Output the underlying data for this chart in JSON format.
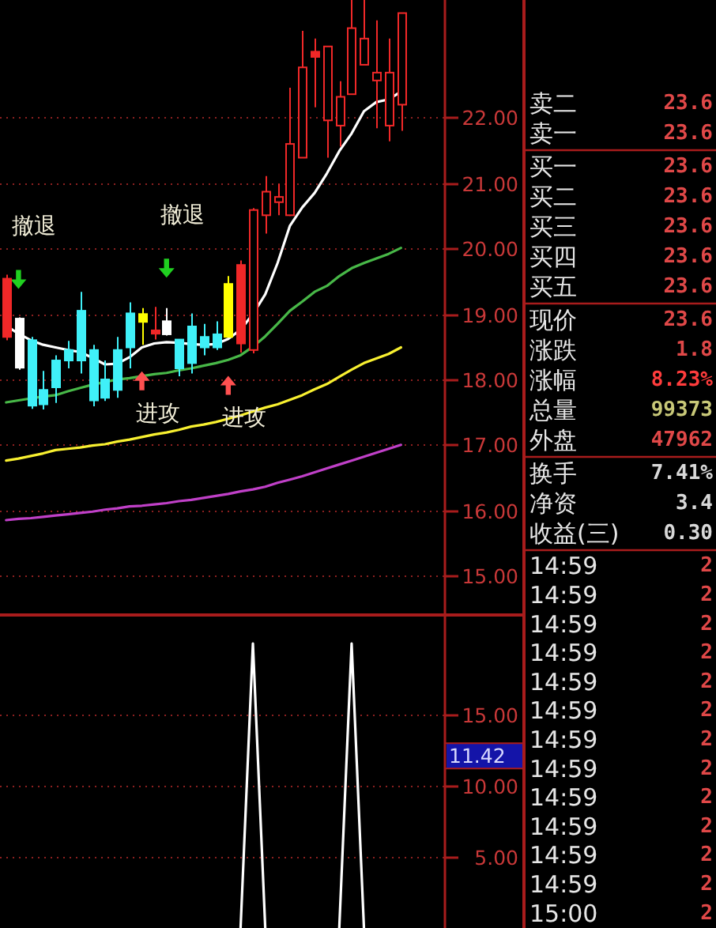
{
  "chart_data": [
    {
      "type": "candlestick",
      "categories": [
        null,
        null,
        null,
        null,
        null,
        null,
        null,
        null,
        null,
        null,
        null,
        null,
        null,
        null,
        null,
        null,
        null,
        null,
        null,
        null,
        null,
        null,
        null,
        null,
        null,
        null,
        null,
        null,
        null,
        null,
        null,
        null,
        null
      ],
      "ohlc": [
        [
          19.54,
          19.6,
          18.6,
          18.65
        ],
        [
          18.93,
          18.95,
          18.15,
          18.18
        ],
        [
          18.6,
          18.65,
          17.55,
          17.6
        ],
        [
          17.84,
          18.13,
          17.54,
          17.62
        ],
        [
          18.29,
          18.37,
          17.64,
          17.88
        ],
        [
          18.45,
          18.59,
          18.17,
          18.29
        ],
        [
          19.05,
          19.34,
          18.09,
          18.29
        ],
        [
          18.45,
          18.53,
          17.59,
          17.68
        ],
        [
          18.0,
          18.29,
          17.67,
          17.72
        ],
        [
          18.45,
          18.65,
          17.72,
          17.84
        ],
        [
          19.01,
          19.18,
          18.17,
          18.49
        ],
        [
          19.0,
          19.09,
          18.53,
          18.88
        ],
        [
          18.75,
          19.11,
          18.61,
          18.7
        ],
        [
          18.89,
          19.09,
          18.67,
          18.69
        ],
        [
          18.61,
          18.61,
          18.05,
          18.17
        ],
        [
          18.81,
          19.01,
          18.09,
          18.25
        ],
        [
          18.65,
          18.85,
          18.37,
          18.49
        ],
        [
          18.69,
          18.89,
          18.45,
          18.49
        ],
        [
          19.46,
          19.58,
          18.65,
          18.65
        ],
        [
          19.75,
          19.82,
          18.41,
          18.55
        ],
        [
          18.45,
          20.62,
          18.4,
          20.59
        ],
        [
          20.51,
          21.11,
          20.23,
          20.87
        ],
        [
          20.71,
          20.99,
          20.51,
          20.79
        ],
        [
          20.51,
          22.46,
          20.5,
          21.6
        ],
        [
          21.39,
          23.33,
          21.39,
          22.77
        ],
        [
          23.01,
          23.21,
          22.16,
          22.93
        ],
        [
          21.96,
          23.1,
          21.39,
          23.09
        ],
        [
          21.88,
          22.56,
          21.56,
          22.32
        ],
        [
          22.36,
          23.8,
          22.36,
          23.37
        ],
        [
          22.81,
          23.8,
          22.81,
          23.21
        ],
        [
          22.57,
          23.49,
          21.84,
          22.69
        ],
        [
          21.88,
          23.21,
          21.64,
          22.69
        ],
        [
          22.2,
          23.6,
          21.8,
          23.6
        ]
      ],
      "colors": [
        "#f02828",
        "#ffffff",
        "#40f0f8",
        "#40f0f8",
        "#40f0f8",
        "#40f0f8",
        "#40f0f8",
        "#40f0f8",
        "#40f0f8",
        "#40f0f8",
        "#40f0f8",
        "#ffff00",
        "#f02828",
        "#ffffff",
        "#40f0f8",
        "#40f0f8",
        "#40f0f8",
        "#40f0f8",
        "#ffff00",
        "#f02828",
        "#f02828",
        "#f02828",
        "#f02828",
        "#f02828",
        "#f02828",
        "#f02828",
        "#f02828",
        "#f02828",
        "#f02828",
        "#f02828",
        "#f02828",
        "#f02828",
        "#f02828"
      ],
      "series": [
        {
          "type": "line",
          "color": "#ffffff",
          "values": [
            18.82,
            18.7,
            18.6,
            18.53,
            18.49,
            18.45,
            18.42,
            18.33,
            18.23,
            18.24,
            18.34,
            18.49,
            18.55,
            18.57,
            18.56,
            18.54,
            18.53,
            18.54,
            18.62,
            18.76,
            19.0,
            19.3,
            19.78,
            20.35,
            20.63,
            20.85,
            21.15,
            21.49,
            21.76,
            22.1,
            22.24,
            22.28,
            22.4
          ]
        },
        {
          "type": "line",
          "color": "#48b848",
          "values": [
            17.65,
            17.68,
            17.71,
            17.74,
            17.76,
            17.82,
            17.87,
            17.92,
            17.96,
            18.0,
            18.02,
            18.05,
            18.08,
            18.1,
            18.14,
            18.17,
            18.21,
            18.25,
            18.3,
            18.37,
            18.5,
            18.66,
            18.85,
            19.05,
            19.19,
            19.34,
            19.43,
            19.58,
            19.7,
            19.78,
            19.85,
            19.92,
            20.01
          ]
        },
        {
          "type": "line",
          "color": "#f8f030",
          "values": [
            16.76,
            16.79,
            16.83,
            16.87,
            16.92,
            16.94,
            16.96,
            16.99,
            17.01,
            17.05,
            17.08,
            17.12,
            17.16,
            17.19,
            17.23,
            17.28,
            17.31,
            17.35,
            17.4,
            17.45,
            17.51,
            17.57,
            17.62,
            17.69,
            17.76,
            17.85,
            17.93,
            18.04,
            18.15,
            18.25,
            18.32,
            18.39,
            18.49
          ]
        },
        {
          "type": "line",
          "color": "#c040c8",
          "values": [
            15.85,
            15.87,
            15.88,
            15.9,
            15.92,
            15.94,
            15.96,
            15.98,
            16.01,
            16.03,
            16.06,
            16.07,
            16.09,
            16.11,
            16.14,
            16.16,
            16.19,
            16.22,
            16.25,
            16.29,
            16.32,
            16.36,
            16.42,
            16.47,
            16.52,
            16.58,
            16.64,
            16.7,
            16.76,
            16.82,
            16.88,
            16.94,
            17.0
          ]
        },
        {
          "type": "scatter",
          "marker": "triangle",
          "color": "#20d020",
          "values": [
            null,
            19.53,
            null,
            null,
            null,
            null,
            null,
            null,
            null,
            null,
            null,
            null,
            null,
            19.7,
            null,
            null,
            null,
            null,
            null,
            null,
            null,
            null,
            null,
            null,
            null,
            null,
            null,
            null,
            null,
            null,
            null,
            null,
            null
          ],
          "value_labels": [
            null,
            "撤退",
            null,
            null,
            null,
            null,
            null,
            null,
            null,
            null,
            null,
            null,
            null,
            "撤退",
            null,
            null,
            null,
            null,
            null,
            null,
            null,
            null,
            null,
            null,
            null,
            null,
            null,
            null,
            null,
            null,
            null,
            null,
            null
          ]
        },
        {
          "type": "scatter",
          "marker": "triangle",
          "color": "#ff5050",
          "values": [
            null,
            null,
            null,
            null,
            null,
            null,
            null,
            null,
            null,
            null,
            null,
            17.98,
            null,
            null,
            null,
            null,
            null,
            null,
            17.91,
            null,
            null,
            null,
            null,
            null,
            null,
            null,
            null,
            null,
            null,
            null,
            null,
            null,
            null
          ],
          "value_labels": [
            null,
            null,
            null,
            null,
            null,
            null,
            null,
            null,
            null,
            null,
            null,
            "进攻",
            null,
            null,
            null,
            null,
            null,
            null,
            "进攻",
            null,
            null,
            null,
            null,
            null,
            null,
            null,
            null,
            null,
            null,
            null,
            null,
            null,
            null
          ]
        }
      ],
      "ylim": [
        14.4,
        23.8
      ],
      "yticks": [
        {
          "value": 15,
          "label": "15.00"
        },
        {
          "value": 16,
          "label": "16.00"
        },
        {
          "value": 17,
          "label": "17.00"
        },
        {
          "value": 18,
          "label": "18.00"
        },
        {
          "value": 19,
          "label": "19.00"
        },
        {
          "value": 20,
          "label": "20.00"
        },
        {
          "value": 21,
          "label": "21.00"
        },
        {
          "value": 22,
          "label": "22.00"
        }
      ],
      "grid": "y",
      "tick_labels": "y"
    },
    {
      "type": "line",
      "categories": [
        null,
        null,
        null,
        null,
        null,
        null,
        null,
        null,
        null,
        null,
        null,
        null,
        null,
        null,
        null,
        null,
        null,
        null,
        null,
        null,
        null,
        null,
        null,
        null,
        null,
        null,
        null,
        null,
        null,
        null,
        null,
        null,
        null
      ],
      "series": [
        {
          "color": "#ffffff",
          "values": [
            null,
            null,
            null,
            null,
            null,
            null,
            null,
            null,
            null,
            null,
            null,
            null,
            null,
            null,
            null,
            null,
            null,
            null,
            null,
            0,
            20,
            0,
            null,
            null,
            null,
            null,
            null,
            0,
            20,
            0,
            null,
            null,
            null
          ]
        }
      ],
      "ylim": [
        0,
        22
      ],
      "yticks": [
        {
          "value": 5,
          "label": "5.00"
        },
        {
          "value": 10,
          "label": "10.00"
        },
        {
          "value": 15,
          "label": "15.00"
        }
      ],
      "grid": "y",
      "tick_labels": "y",
      "annotations": [
        "11.42"
      ]
    },
    {
      "type": "other",
      "categories": [
        "卖二",
        "卖一"
      ],
      "value_labels": [
        "23.6",
        "23.6"
      ],
      "colors": [
        "#e04848",
        "#e04848"
      ]
    },
    {
      "type": "other",
      "categories": [
        "买一",
        "买二",
        "买三",
        "买四",
        "买五"
      ],
      "value_labels": [
        "23.6",
        "23.6",
        "23.6",
        "23.6",
        "23.6"
      ],
      "colors": [
        "#e04848",
        "#e04848",
        "#e04848",
        "#e04848",
        "#e04848"
      ]
    },
    {
      "type": "other",
      "categories": [
        "现价",
        "涨跌",
        "涨幅",
        "总量",
        "外盘"
      ],
      "value_labels": [
        "23.6",
        "1.8",
        "8.23%",
        "99373",
        "47962"
      ],
      "colors": [
        "#e04848",
        "#e04848",
        "#ff3c3c",
        "#c8c878",
        "#e04848"
      ]
    },
    {
      "type": "other",
      "categories": [
        "换手",
        "净资",
        "收益(三)"
      ],
      "value_labels": [
        "7.41%",
        "3.4",
        "0.30"
      ],
      "colors": [
        "#d8d8d8",
        "#d8d8d8",
        "#d8d8d8"
      ]
    },
    {
      "type": "other",
      "categories": [
        "14:59",
        "14:59",
        "14:59",
        "14:59",
        "14:59",
        "14:59",
        "14:59",
        "14:59",
        "14:59",
        "14:59",
        "14:59",
        "14:59",
        "15:00"
      ],
      "value_labels": [
        "2",
        "2",
        "2",
        "2",
        "2",
        "2",
        "2",
        "2",
        "2",
        "2",
        "2",
        "2",
        "2"
      ],
      "colors": [
        "#e04848",
        "#e04848",
        "#e04848",
        "#e04848",
        "#e04848",
        "#e04848",
        "#e04848",
        "#e04848",
        "#e04848",
        "#e04848",
        "#e04848",
        "#e04848",
        "#e04848"
      ]
    }
  ]
}
